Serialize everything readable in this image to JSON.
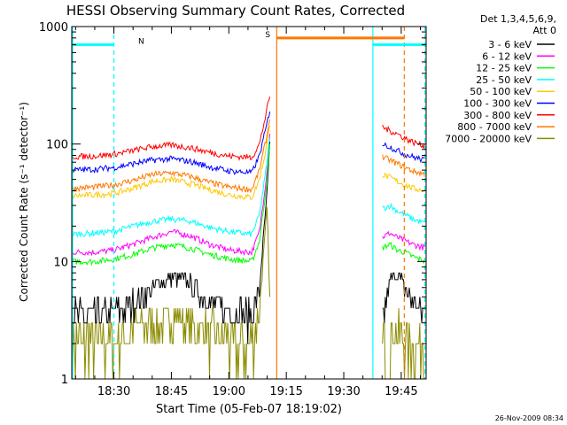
{
  "chart_data": {
    "type": "line",
    "title": "HESSI Observing Summary Count Rates, Corrected",
    "xlabel": "Start Time (05-Feb-07 18:19:02)",
    "ylabel": "Corrected Count Rate (s⁻¹ detector⁻¹)",
    "yscale": "log",
    "ylim": [
      1,
      1000
    ],
    "xlim_minutes": [
      19.0,
      111.5
    ],
    "x_ticks": [
      {
        "m": 30,
        "label": "18:30"
      },
      {
        "m": 45,
        "label": "18:45"
      },
      {
        "m": 60,
        "label": "19:00"
      },
      {
        "m": 75,
        "label": "19:15"
      },
      {
        "m": 90,
        "label": "19:30"
      },
      {
        "m": 105,
        "label": "19:45"
      }
    ],
    "y_ticks": [
      {
        "v": 1,
        "label": "1"
      },
      {
        "v": 10,
        "label": "10"
      },
      {
        "v": 100,
        "label": "100"
      },
      {
        "v": 1000,
        "label": "1000"
      }
    ],
    "legend_header": [
      "Det 1,3,4,5,6,9,",
      "Att 0"
    ],
    "legend_position": "right",
    "footer_date": "26-Nov-2009 08:34",
    "series": [
      {
        "name": "3 - 6 keV",
        "color": "#000000",
        "points": [
          [
            19,
            3.5
          ],
          [
            25,
            3.5
          ],
          [
            30,
            3.6
          ],
          [
            35,
            4.5
          ],
          [
            40,
            6
          ],
          [
            45,
            7.5
          ],
          [
            50,
            6.5
          ],
          [
            55,
            4.5
          ],
          [
            60,
            3.8
          ],
          [
            66,
            3.6
          ],
          [
            68,
            6
          ],
          [
            70,
            40
          ],
          [
            70.8,
            120
          ],
          [
            71,
            3
          ],
          [
            72.5,
            3
          ],
          [
            100,
            3
          ],
          [
            102,
            7
          ],
          [
            104,
            8
          ],
          [
            106,
            6
          ],
          [
            108,
            4.5
          ],
          [
            110,
            4
          ],
          [
            111.5,
            3.5
          ]
        ]
      },
      {
        "name": "6 - 12 keV",
        "color": "#ff00ff",
        "points": [
          [
            19,
            12
          ],
          [
            25,
            12
          ],
          [
            30,
            12.5
          ],
          [
            35,
            14
          ],
          [
            40,
            16
          ],
          [
            45,
            18
          ],
          [
            50,
            16.5
          ],
          [
            55,
            14
          ],
          [
            60,
            12.5
          ],
          [
            66,
            12
          ],
          [
            68,
            18
          ],
          [
            70,
            60
          ],
          [
            71,
            170
          ],
          [
            100,
            16
          ],
          [
            102,
            17.5
          ],
          [
            104,
            16
          ],
          [
            106,
            15
          ],
          [
            108,
            14
          ],
          [
            111.5,
            13
          ]
        ]
      },
      {
        "name": "12 - 25 keV",
        "color": "#00ff00",
        "points": [
          [
            19,
            10
          ],
          [
            25,
            10
          ],
          [
            30,
            10.5
          ],
          [
            35,
            11.5
          ],
          [
            40,
            13
          ],
          [
            45,
            14
          ],
          [
            50,
            13
          ],
          [
            55,
            11.5
          ],
          [
            60,
            10.5
          ],
          [
            66,
            10
          ],
          [
            68,
            15
          ],
          [
            70,
            50
          ],
          [
            71,
            130
          ],
          [
            100,
            13
          ],
          [
            102,
            14
          ],
          [
            104,
            12.5
          ],
          [
            106,
            12
          ],
          [
            108,
            11
          ],
          [
            111.5,
            10
          ]
        ]
      },
      {
        "name": "25 - 50 keV",
        "color": "#00ffff",
        "points": [
          [
            19,
            17
          ],
          [
            25,
            17.5
          ],
          [
            30,
            18
          ],
          [
            35,
            20
          ],
          [
            40,
            22
          ],
          [
            45,
            23
          ],
          [
            50,
            22
          ],
          [
            55,
            19.5
          ],
          [
            60,
            18
          ],
          [
            66,
            17
          ],
          [
            68,
            25
          ],
          [
            70,
            70
          ],
          [
            71,
            150
          ],
          [
            100,
            28
          ],
          [
            102,
            30
          ],
          [
            104,
            27
          ],
          [
            106,
            25
          ],
          [
            108,
            23
          ],
          [
            111.5,
            21
          ]
        ]
      },
      {
        "name": "50 - 100 keV",
        "color": "#ffc800",
        "points": [
          [
            19,
            36
          ],
          [
            25,
            37
          ],
          [
            30,
            38
          ],
          [
            35,
            42
          ],
          [
            40,
            48
          ],
          [
            45,
            50
          ],
          [
            50,
            46
          ],
          [
            55,
            41
          ],
          [
            60,
            37
          ],
          [
            66,
            35
          ],
          [
            68,
            50
          ],
          [
            70,
            100
          ],
          [
            71,
            180
          ],
          [
            100,
            55
          ],
          [
            102,
            52
          ],
          [
            104,
            48
          ],
          [
            106,
            45
          ],
          [
            108,
            42
          ],
          [
            111.5,
            40
          ]
        ]
      },
      {
        "name": "100 - 300 keV",
        "color": "#0000ff",
        "points": [
          [
            19,
            60
          ],
          [
            25,
            61
          ],
          [
            30,
            63
          ],
          [
            35,
            68
          ],
          [
            40,
            73
          ],
          [
            45,
            75
          ],
          [
            50,
            71
          ],
          [
            55,
            64
          ],
          [
            60,
            59
          ],
          [
            66,
            57
          ],
          [
            68,
            80
          ],
          [
            70,
            150
          ],
          [
            71,
            220
          ],
          [
            100,
            100
          ],
          [
            102,
            95
          ],
          [
            104,
            88
          ],
          [
            106,
            82
          ],
          [
            108,
            78
          ],
          [
            111.5,
            72
          ]
        ]
      },
      {
        "name": "300 - 800 keV",
        "color": "#ff0000",
        "points": [
          [
            19,
            78
          ],
          [
            25,
            79
          ],
          [
            30,
            82
          ],
          [
            35,
            88
          ],
          [
            40,
            95
          ],
          [
            45,
            98
          ],
          [
            50,
            93
          ],
          [
            55,
            85
          ],
          [
            60,
            79
          ],
          [
            66,
            77
          ],
          [
            68,
            100
          ],
          [
            70,
            200
          ],
          [
            71,
            290
          ],
          [
            100,
            140
          ],
          [
            102,
            130
          ],
          [
            104,
            122
          ],
          [
            106,
            112
          ],
          [
            108,
            104
          ],
          [
            111.5,
            96
          ]
        ]
      },
      {
        "name": "800 - 7000 keV",
        "color": "#ff7800",
        "points": [
          [
            19,
            42
          ],
          [
            25,
            43
          ],
          [
            30,
            45
          ],
          [
            35,
            49
          ],
          [
            40,
            55
          ],
          [
            45,
            57
          ],
          [
            50,
            53
          ],
          [
            55,
            47
          ],
          [
            60,
            43
          ],
          [
            66,
            41
          ],
          [
            68,
            60
          ],
          [
            70,
            120
          ],
          [
            71,
            200
          ],
          [
            100,
            78
          ],
          [
            102,
            73
          ],
          [
            104,
            68
          ],
          [
            106,
            63
          ],
          [
            108,
            59
          ],
          [
            111.5,
            55
          ]
        ]
      },
      {
        "name": "7000 - 20000 keV",
        "color": "#8c8c00",
        "points": [
          [
            19,
            2
          ],
          [
            25,
            2.1
          ],
          [
            30,
            2.2
          ],
          [
            35,
            2.6
          ],
          [
            40,
            3
          ],
          [
            45,
            3.3
          ],
          [
            50,
            3
          ],
          [
            55,
            2.5
          ],
          [
            60,
            2.2
          ],
          [
            66,
            2
          ],
          [
            68,
            4
          ],
          [
            70,
            30
          ],
          [
            71,
            2
          ],
          [
            72.5,
            1.8
          ],
          [
            100,
            2.2
          ],
          [
            104,
            2.5
          ],
          [
            108,
            2.2
          ],
          [
            111.5,
            2
          ]
        ]
      }
    ],
    "flags": [
      {
        "label": "N",
        "color": "#00ffff",
        "value": 700,
        "spans": [
          [
            19,
            30
          ],
          [
            97.6,
            111.5
          ]
        ]
      },
      {
        "label": "S",
        "color": "#ff7800",
        "value": 800,
        "spans": [
          [
            72.5,
            105.8
          ]
        ]
      }
    ],
    "vlines": [
      {
        "m": 19.2,
        "color": "#00ffff",
        "style": "solid"
      },
      {
        "m": 30,
        "color": "#00ffff",
        "style": "dashed"
      },
      {
        "m": 72.5,
        "color": "#ff7800",
        "style": "solid"
      },
      {
        "m": 97.6,
        "color": "#00ffff",
        "style": "solid"
      },
      {
        "m": 105.8,
        "color": "#ff7800",
        "style": "dashed"
      },
      {
        "m": 111.2,
        "color": "#00ffff",
        "style": "dashed"
      }
    ]
  }
}
